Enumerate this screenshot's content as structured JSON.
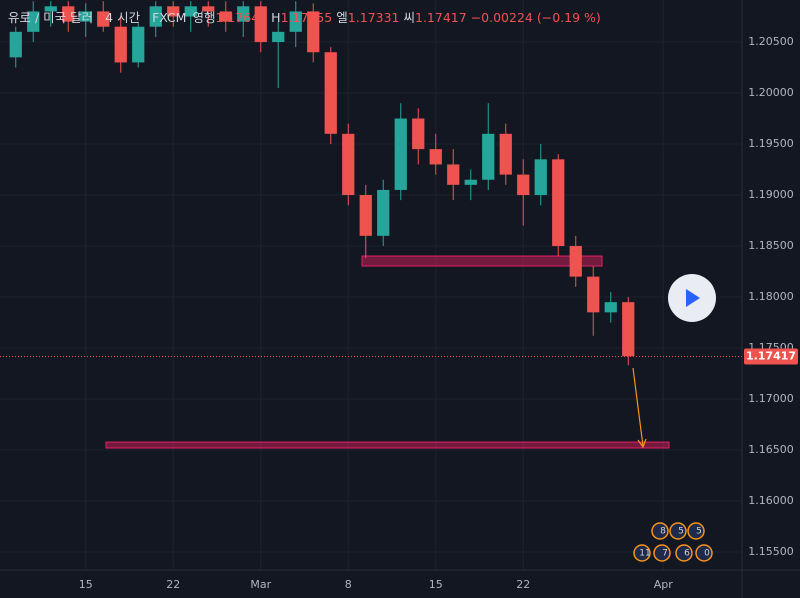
{
  "chart_data": {
    "type": "candlestick",
    "title": "유로 / 미국 달러",
    "interval": "4 시간",
    "source": "FXCM",
    "ohlc": [
      {
        "label": "영행",
        "value": 1.17641
      },
      {
        "label": "H",
        "value": 1.17655
      },
      {
        "label": "엘",
        "value": 1.17331
      },
      {
        "label": "씨",
        "value": 1.17417
      }
    ],
    "change": "−0.00224 (−0.19 %)",
    "categories": [
      null,
      null,
      null,
      null,
      "15",
      null,
      null,
      null,
      null,
      "22",
      null,
      null,
      null,
      null,
      "Mar",
      null,
      null,
      null,
      null,
      "8",
      null,
      null,
      null,
      null,
      "15",
      null,
      null,
      null,
      null,
      "22",
      null,
      null,
      null,
      null,
      null,
      null,
      null,
      "Apr",
      null,
      null,
      null,
      null
    ],
    "open": [
      1.2035,
      1.206,
      1.208,
      1.2085,
      1.207,
      1.208,
      1.2065,
      1.203,
      1.2065,
      1.2085,
      1.2075,
      1.2085,
      1.208,
      1.207,
      1.2085,
      1.205,
      1.206,
      1.208,
      1.204,
      1.196,
      1.19,
      1.186,
      1.1905,
      1.1975,
      1.1945,
      1.193,
      1.191,
      1.1915,
      1.196,
      1.192,
      1.19,
      1.1935,
      1.185,
      1.182,
      1.1785,
      1.1795,
      null,
      null,
      null,
      null,
      null,
      null
    ],
    "high": [
      1.2065,
      1.209,
      1.209,
      1.209,
      1.2088,
      1.209,
      1.2075,
      1.207,
      1.209,
      1.209,
      1.209,
      1.209,
      1.209,
      1.209,
      1.209,
      1.207,
      1.209,
      1.2088,
      1.2045,
      1.197,
      1.191,
      1.1915,
      1.199,
      1.1985,
      1.196,
      1.1945,
      1.1925,
      1.199,
      1.197,
      1.1935,
      1.195,
      1.194,
      1.186,
      1.183,
      1.1805,
      1.18,
      null,
      null,
      null,
      null,
      null,
      null
    ],
    "low": [
      1.2025,
      1.205,
      1.2065,
      1.206,
      1.2055,
      1.206,
      1.202,
      1.2025,
      1.2055,
      1.2065,
      1.206,
      1.2065,
      1.206,
      1.2055,
      1.204,
      1.2005,
      1.2045,
      1.203,
      1.195,
      1.189,
      1.1838,
      1.185,
      1.1895,
      1.193,
      1.192,
      1.1895,
      1.1895,
      1.1905,
      1.191,
      1.187,
      1.189,
      1.184,
      1.181,
      1.1762,
      1.1775,
      1.1733,
      null,
      null,
      null,
      null,
      null,
      null
    ],
    "close": [
      1.206,
      1.208,
      1.2085,
      1.207,
      1.208,
      1.2065,
      1.203,
      1.2065,
      1.2085,
      1.2075,
      1.2085,
      1.208,
      1.207,
      1.2085,
      1.205,
      1.206,
      1.208,
      1.204,
      1.196,
      1.19,
      1.186,
      1.1905,
      1.1975,
      1.1945,
      1.193,
      1.191,
      1.1915,
      1.196,
      1.192,
      1.19,
      1.1935,
      1.185,
      1.182,
      1.1785,
      1.1795,
      1.1742,
      null,
      null,
      null,
      null,
      null,
      null
    ],
    "up_color": "#26a69a",
    "down_color": "#ef5350",
    "ylim": [
      1.15324,
      1.20912
    ],
    "yticks": [
      {
        "value": 1.155,
        "label": "1.15500"
      },
      {
        "value": 1.16,
        "label": "1.16000"
      },
      {
        "value": 1.165,
        "label": "1.16500"
      },
      {
        "value": 1.17,
        "label": "1.17000"
      },
      {
        "value": 1.175,
        "label": "1.17500"
      },
      {
        "value": 1.18,
        "label": "1.18000"
      },
      {
        "value": 1.185,
        "label": "1.18500"
      },
      {
        "value": 1.19,
        "label": "1.19000"
      },
      {
        "value": 1.195,
        "label": "1.19500"
      },
      {
        "value": 1.2,
        "label": "1.20000"
      },
      {
        "value": 1.205,
        "label": "1.20500"
      }
    ],
    "last_price": 1.17417,
    "zones": [
      {
        "top": 1.18402,
        "bottom": 1.18304
      },
      {
        "top": 1.16578,
        "bottom": 1.1652
      }
    ],
    "grid": true,
    "events": [
      "8",
      "5",
      "5",
      "11",
      "7",
      "6",
      "0"
    ]
  }
}
